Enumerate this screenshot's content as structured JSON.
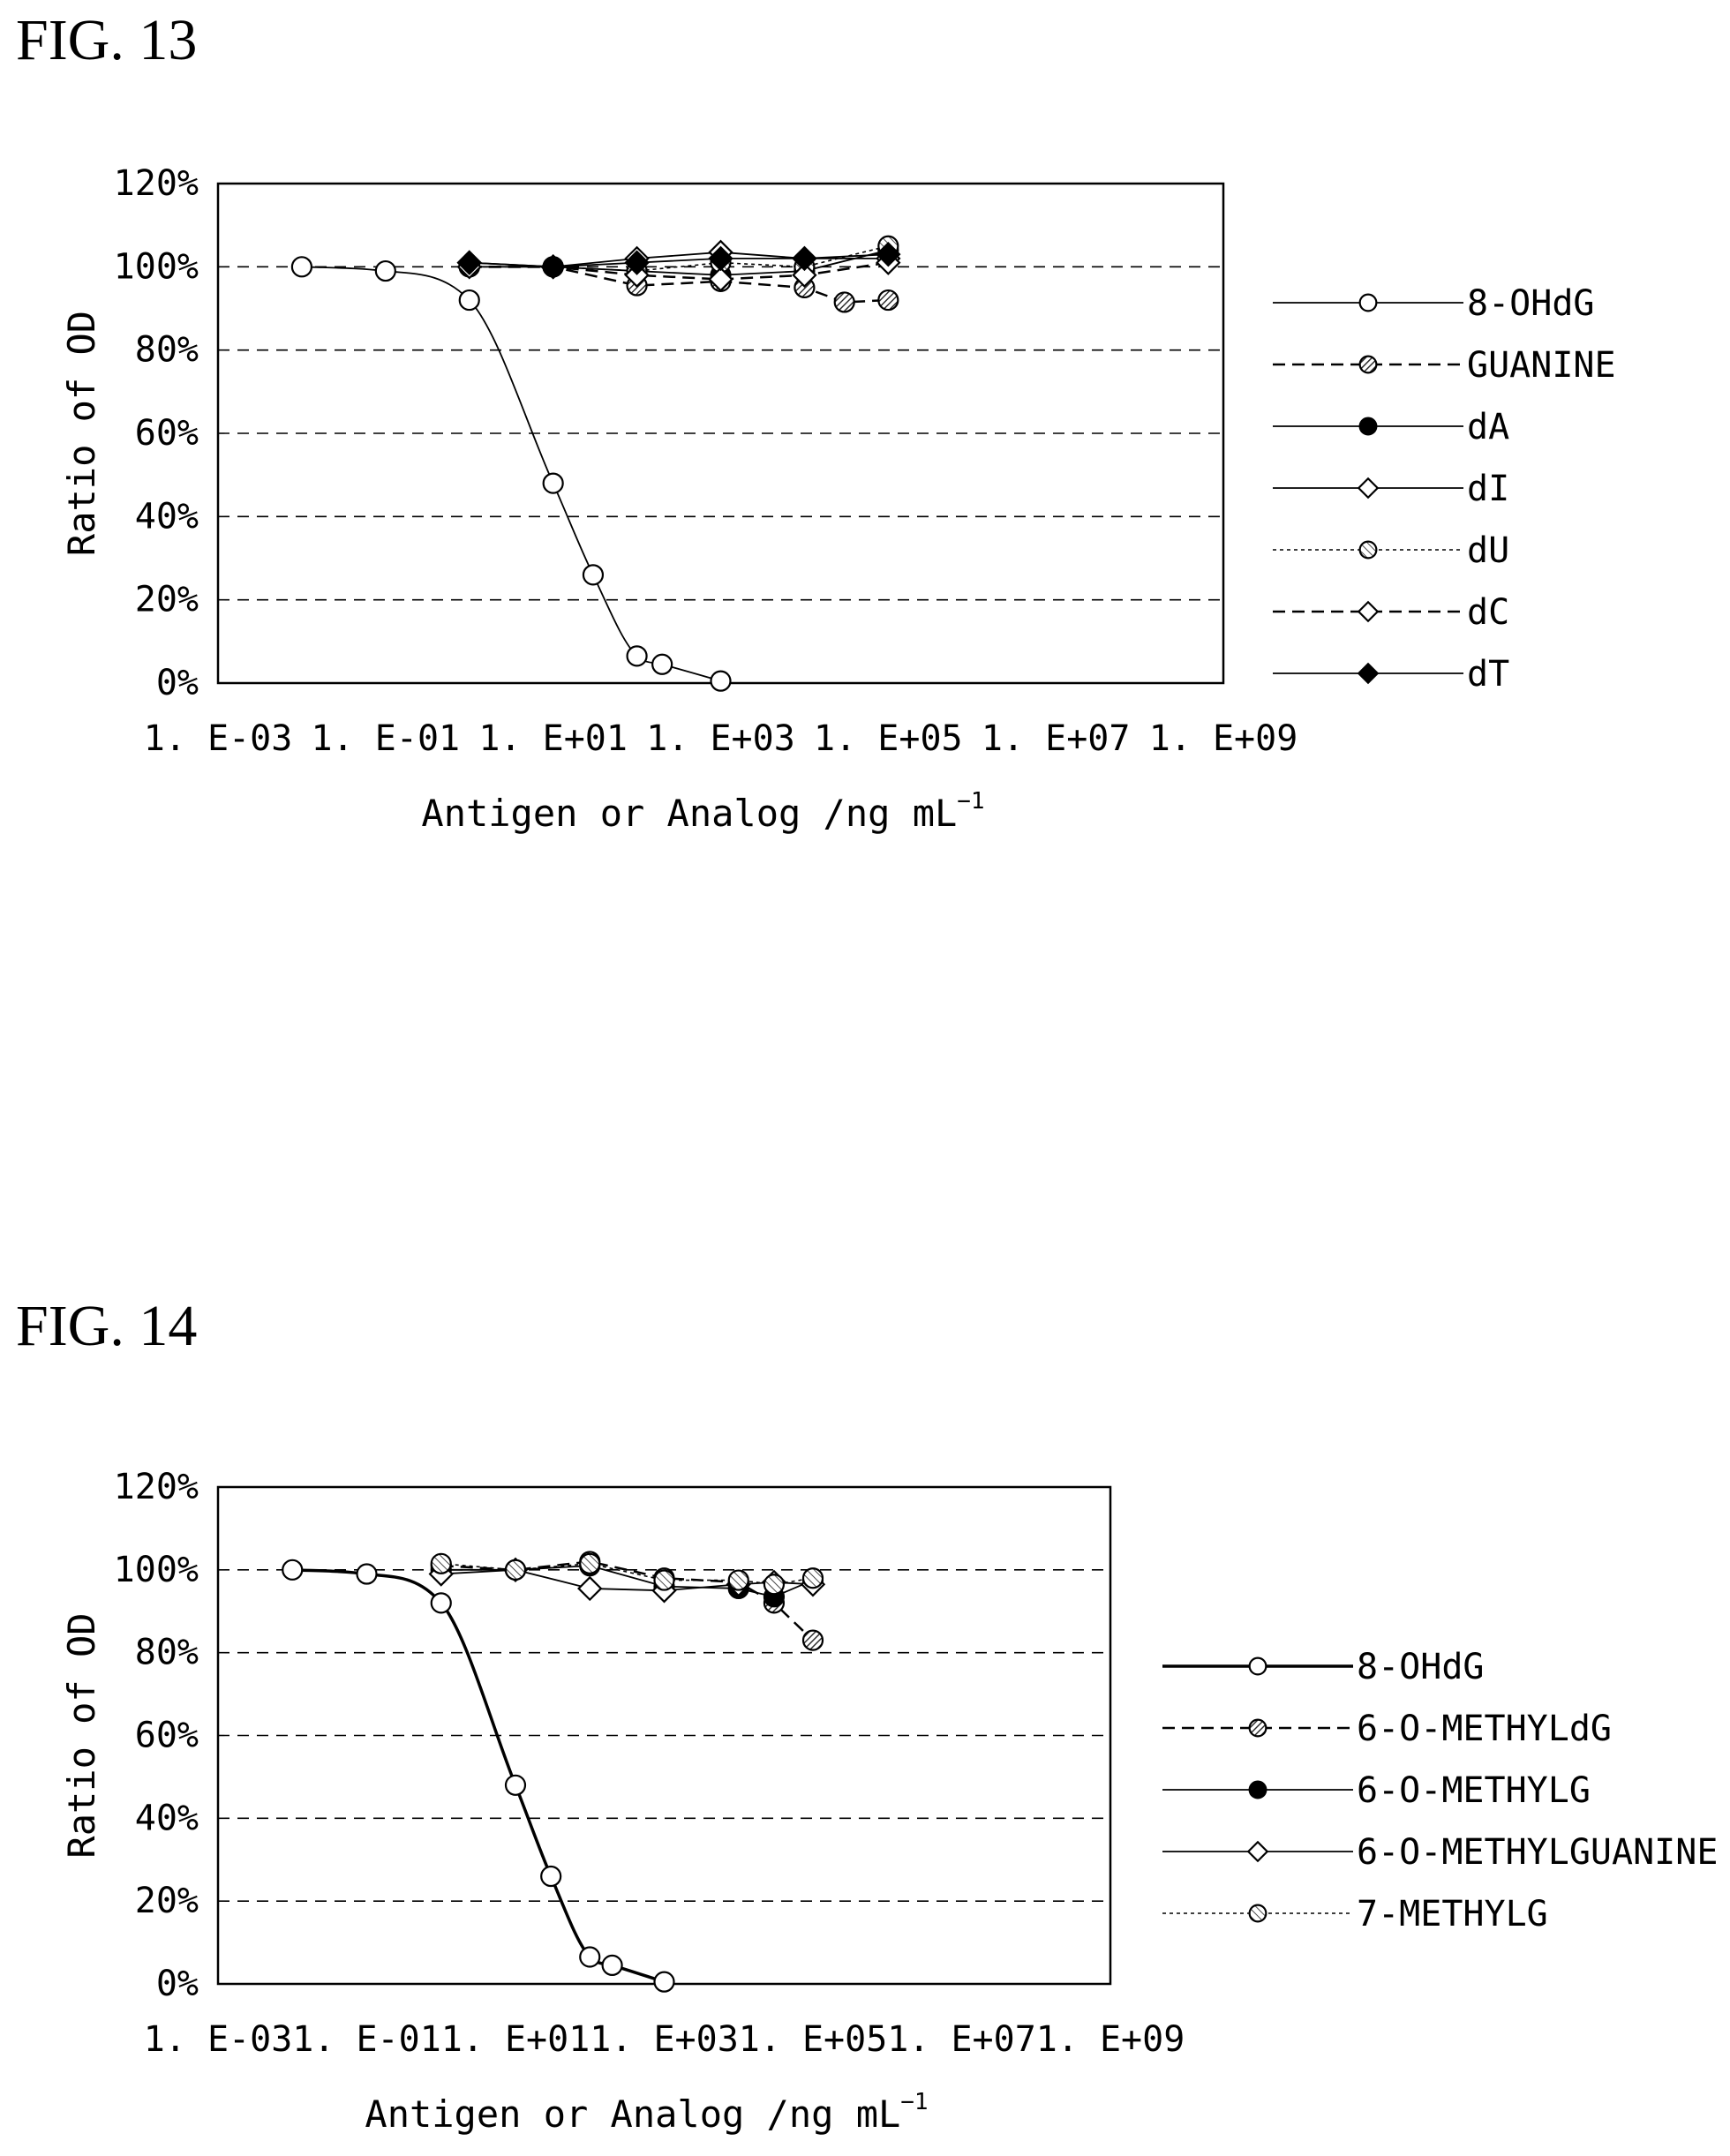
{
  "figures": [
    {
      "title": "FIG. 13"
    },
    {
      "title": "FIG. 14"
    }
  ],
  "chart_data": [
    {
      "type": "line",
      "title": "",
      "xlabel": "Antigen or Analog /ng mL",
      "xlabel_sup": "−1",
      "ylabel": "Ratio of OD",
      "xscale": "log",
      "xlim": [
        0.001,
        1000000000
      ],
      "ylim": [
        0,
        120
      ],
      "x_ticks": [
        0.001,
        0.1,
        10,
        1000,
        100000,
        10000000,
        1000000000
      ],
      "x_tick_labels": [
        "1. E-03",
        "1. E-01",
        "1. E+01",
        "1. E+03",
        "1. E+05",
        "1. E+07",
        "1. E+09"
      ],
      "y_ticks": [
        0,
        20,
        40,
        60,
        80,
        100,
        120
      ],
      "y_tick_labels": [
        "0%",
        "20%",
        "40%",
        "60%",
        "80%",
        "100%",
        "120%"
      ],
      "grid": "horizontal dashed",
      "legend_position": "right",
      "series": [
        {
          "name": "8-OHdG",
          "marker": "circle-open",
          "line": "solid",
          "smooth": true,
          "x": [
            0.01,
            0.1,
            1,
            10,
            30,
            100,
            200,
            1000
          ],
          "y": [
            100,
            99,
            92,
            48,
            26,
            6.5,
            4.5,
            0.5
          ]
        },
        {
          "name": "GUANINE",
          "marker": "circle-hatched",
          "line": "dashed",
          "smooth": false,
          "x": [
            1,
            10,
            100,
            1000,
            10000,
            30000,
            100000
          ],
          "y": [
            100,
            100,
            95.5,
            96.5,
            95,
            91.5,
            92
          ]
        },
        {
          "name": "dA",
          "marker": "circle-filled",
          "line": "solid",
          "smooth": false,
          "x": [
            1,
            10,
            100,
            1000,
            10000,
            100000
          ],
          "y": [
            100,
            100,
            99,
            98,
            99,
            104
          ]
        },
        {
          "name": "dI",
          "marker": "diamond-open",
          "line": "solid",
          "smooth": false,
          "x": [
            1,
            10,
            100,
            1000,
            10000,
            100000
          ],
          "y": [
            101,
            100,
            102,
            103.5,
            102,
            102
          ]
        },
        {
          "name": "dU",
          "marker": "circle-hatched-light",
          "line": "dotted",
          "smooth": false,
          "x": [
            1,
            10,
            100,
            1000,
            10000,
            100000
          ],
          "y": [
            100,
            100,
            99,
            101,
            100,
            105
          ]
        },
        {
          "name": "dC",
          "marker": "diamond-open",
          "line": "dashed",
          "smooth": false,
          "x": [
            1,
            10,
            100,
            1000,
            10000,
            100000
          ],
          "y": [
            100,
            100,
            98,
            97,
            98,
            101
          ]
        },
        {
          "name": "dT",
          "marker": "diamond-filled",
          "line": "solid",
          "smooth": false,
          "x": [
            1,
            10,
            100,
            1000,
            10000,
            100000
          ],
          "y": [
            101,
            100,
            101,
            102,
            102,
            103
          ]
        }
      ]
    },
    {
      "type": "line",
      "title": "",
      "xlabel": "Antigen or Analog /ng mL",
      "xlabel_sup": "−1",
      "ylabel": "Ratio of OD",
      "xscale": "log",
      "xlim": [
        0.001,
        1000000000
      ],
      "ylim": [
        0,
        120
      ],
      "x_ticks": [
        0.001,
        0.1,
        10,
        1000,
        100000,
        10000000,
        1000000000
      ],
      "x_tick_labels": [
        "1. E-03",
        "1. E-01",
        "1. E+01",
        "1. E+03",
        "1. E+05",
        "1. E+07",
        "1. E+09"
      ],
      "y_ticks": [
        0,
        20,
        40,
        60,
        80,
        100,
        120
      ],
      "y_tick_labels": [
        "0%",
        "20%",
        "40%",
        "60%",
        "80%",
        "100%",
        "120%"
      ],
      "grid": "horizontal dashed",
      "legend_position": "right",
      "series": [
        {
          "name": "8-OHdG",
          "marker": "circle-open",
          "line": "solid-thick",
          "smooth": true,
          "x": [
            0.01,
            0.1,
            1,
            10,
            30,
            100,
            200,
            1000
          ],
          "y": [
            100,
            99,
            92,
            48,
            26,
            6.5,
            4.5,
            0.5
          ]
        },
        {
          "name": "6-O-METHYLdG",
          "marker": "circle-hatched",
          "line": "dashed",
          "smooth": false,
          "x": [
            1,
            10,
            100,
            1000,
            10000,
            30000,
            100000
          ],
          "y": [
            101,
            100,
            102,
            98,
            97,
            92,
            83
          ]
        },
        {
          "name": "6-O-METHYLG",
          "marker": "circle-filled",
          "line": "solid",
          "smooth": false,
          "x": [
            1,
            10,
            100,
            1000,
            10000,
            30000,
            100000
          ],
          "y": [
            100,
            100,
            101,
            96,
            95.5,
            93.5,
            97.5
          ]
        },
        {
          "name": "6-O-METHYLGUANINE",
          "marker": "diamond-open",
          "line": "solid",
          "smooth": false,
          "x": [
            1,
            10,
            100,
            1000,
            10000,
            30000,
            100000
          ],
          "y": [
            99,
            100,
            95.5,
            95,
            96.5,
            97,
            96.5
          ]
        },
        {
          "name": "7-METHYLG",
          "marker": "circle-hatched-light",
          "line": "dotted",
          "smooth": false,
          "x": [
            1,
            10,
            100,
            1000,
            10000,
            30000,
            100000
          ],
          "y": [
            101.5,
            100,
            101.5,
            97.5,
            97.5,
            96.5,
            98
          ]
        }
      ]
    }
  ]
}
